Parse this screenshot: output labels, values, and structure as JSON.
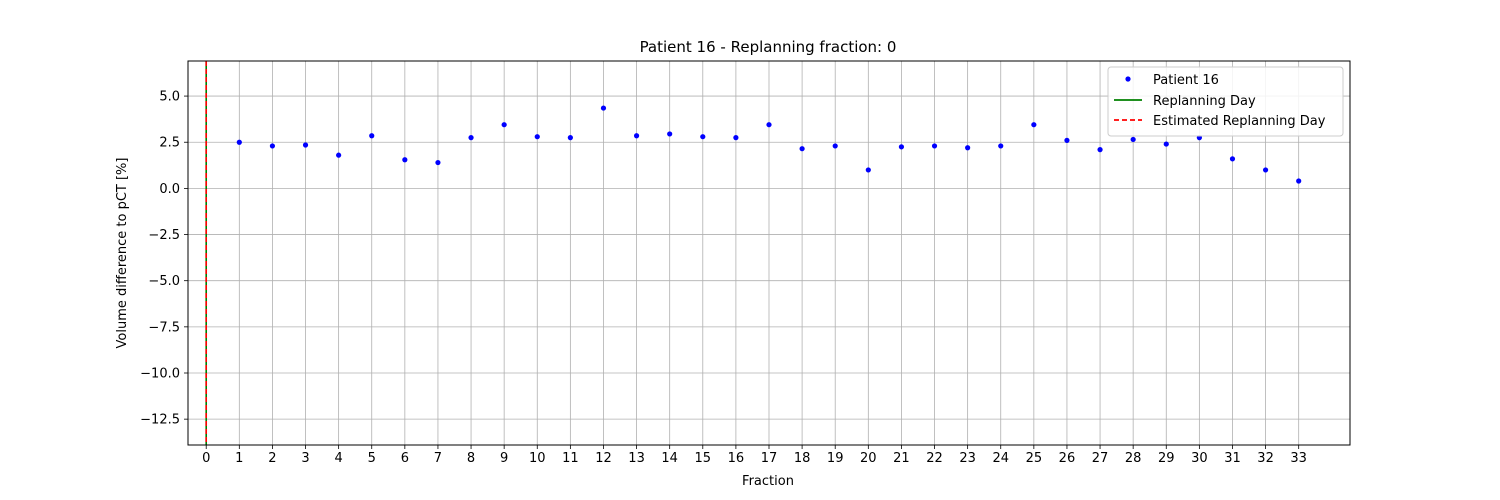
{
  "chart_data": {
    "type": "scatter",
    "title": "Patient 16 - Replanning fraction: 0",
    "xlabel": "Fraction",
    "ylabel": "Volume difference to pCT [%]",
    "xlim": [
      -0.55,
      34.55
    ],
    "ylim": [
      -13.9,
      6.9
    ],
    "xticks": [
      "0",
      "1",
      "2",
      "3",
      "4",
      "5",
      "6",
      "7",
      "8",
      "9",
      "10",
      "11",
      "12",
      "13",
      "14",
      "15",
      "16",
      "17",
      "18",
      "19",
      "20",
      "21",
      "22",
      "23",
      "24",
      "25",
      "26",
      "27",
      "28",
      "29",
      "30",
      "31",
      "32",
      "33"
    ],
    "yticks": [
      5.0,
      2.5,
      0.0,
      -2.5,
      -5.0,
      -7.5,
      -10.0,
      -12.5
    ],
    "ytick_labels": [
      "5.0",
      "2.5",
      "0.0",
      "−2.5",
      "−5.0",
      "−7.5",
      "−10.0",
      "−12.5"
    ],
    "grid": true,
    "legend_position": "top-right",
    "series": [
      {
        "name": "Patient 16",
        "style": "points",
        "color": "#0000ff",
        "x": [
          1,
          2,
          3,
          4,
          5,
          6,
          7,
          8,
          9,
          10,
          11,
          12,
          13,
          14,
          15,
          16,
          17,
          18,
          19,
          20,
          21,
          22,
          23,
          24,
          25,
          26,
          27,
          28,
          29,
          30,
          31,
          32,
          33
        ],
        "y": [
          2.5,
          2.3,
          2.35,
          1.8,
          2.85,
          1.55,
          1.4,
          2.75,
          3.45,
          2.8,
          2.75,
          4.35,
          2.85,
          2.95,
          2.8,
          2.75,
          3.45,
          2.15,
          2.3,
          1.0,
          2.25,
          2.3,
          2.2,
          2.3,
          3.45,
          2.6,
          2.1,
          2.65,
          2.4,
          2.75,
          1.6,
          1.0,
          0.4
        ]
      },
      {
        "name": "Replanning Day",
        "style": "vline-solid",
        "color": "#008000",
        "x": 0
      },
      {
        "name": "Estimated Replanning Day",
        "style": "vline-dashed",
        "color": "#ff0000",
        "x": 0
      }
    ]
  }
}
